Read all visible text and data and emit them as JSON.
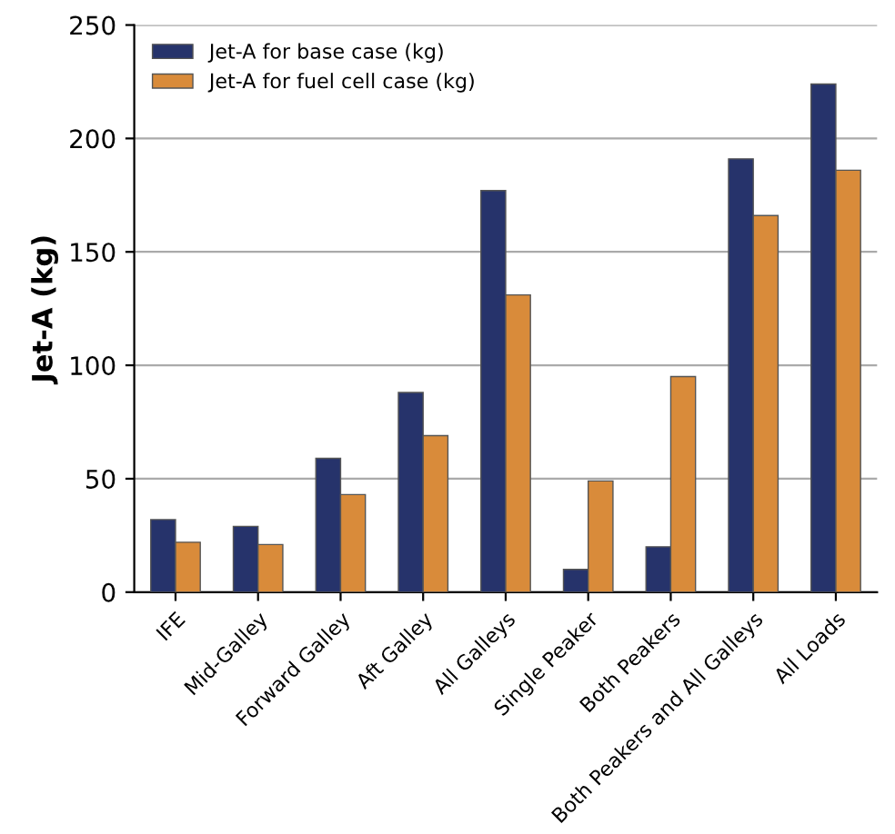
{
  "chart_data": {
    "type": "bar",
    "ylabel": "Jet-A (kg)",
    "categories": [
      "IFE",
      "Mid-Galley",
      "Forward Galley",
      "Aft Galley",
      "All Galleys",
      "Single Peaker",
      "Both Peakers",
      "Both Peakers and All Galleys",
      "All Loads"
    ],
    "series": [
      {
        "name": "Jet-A for base case (kg)",
        "color": "#26336b",
        "values": [
          32,
          29,
          59,
          88,
          177,
          10,
          20,
          191,
          224
        ]
      },
      {
        "name": "Jet-A for fuel cell case (kg)",
        "color": "#d98b3a",
        "values": [
          22,
          21,
          43,
          69,
          131,
          49,
          95,
          166,
          186
        ]
      }
    ],
    "ylim": [
      0,
      250
    ],
    "yticks": [
      0,
      50,
      100,
      150,
      200,
      250
    ],
    "grid": "y",
    "legend": "top left"
  }
}
